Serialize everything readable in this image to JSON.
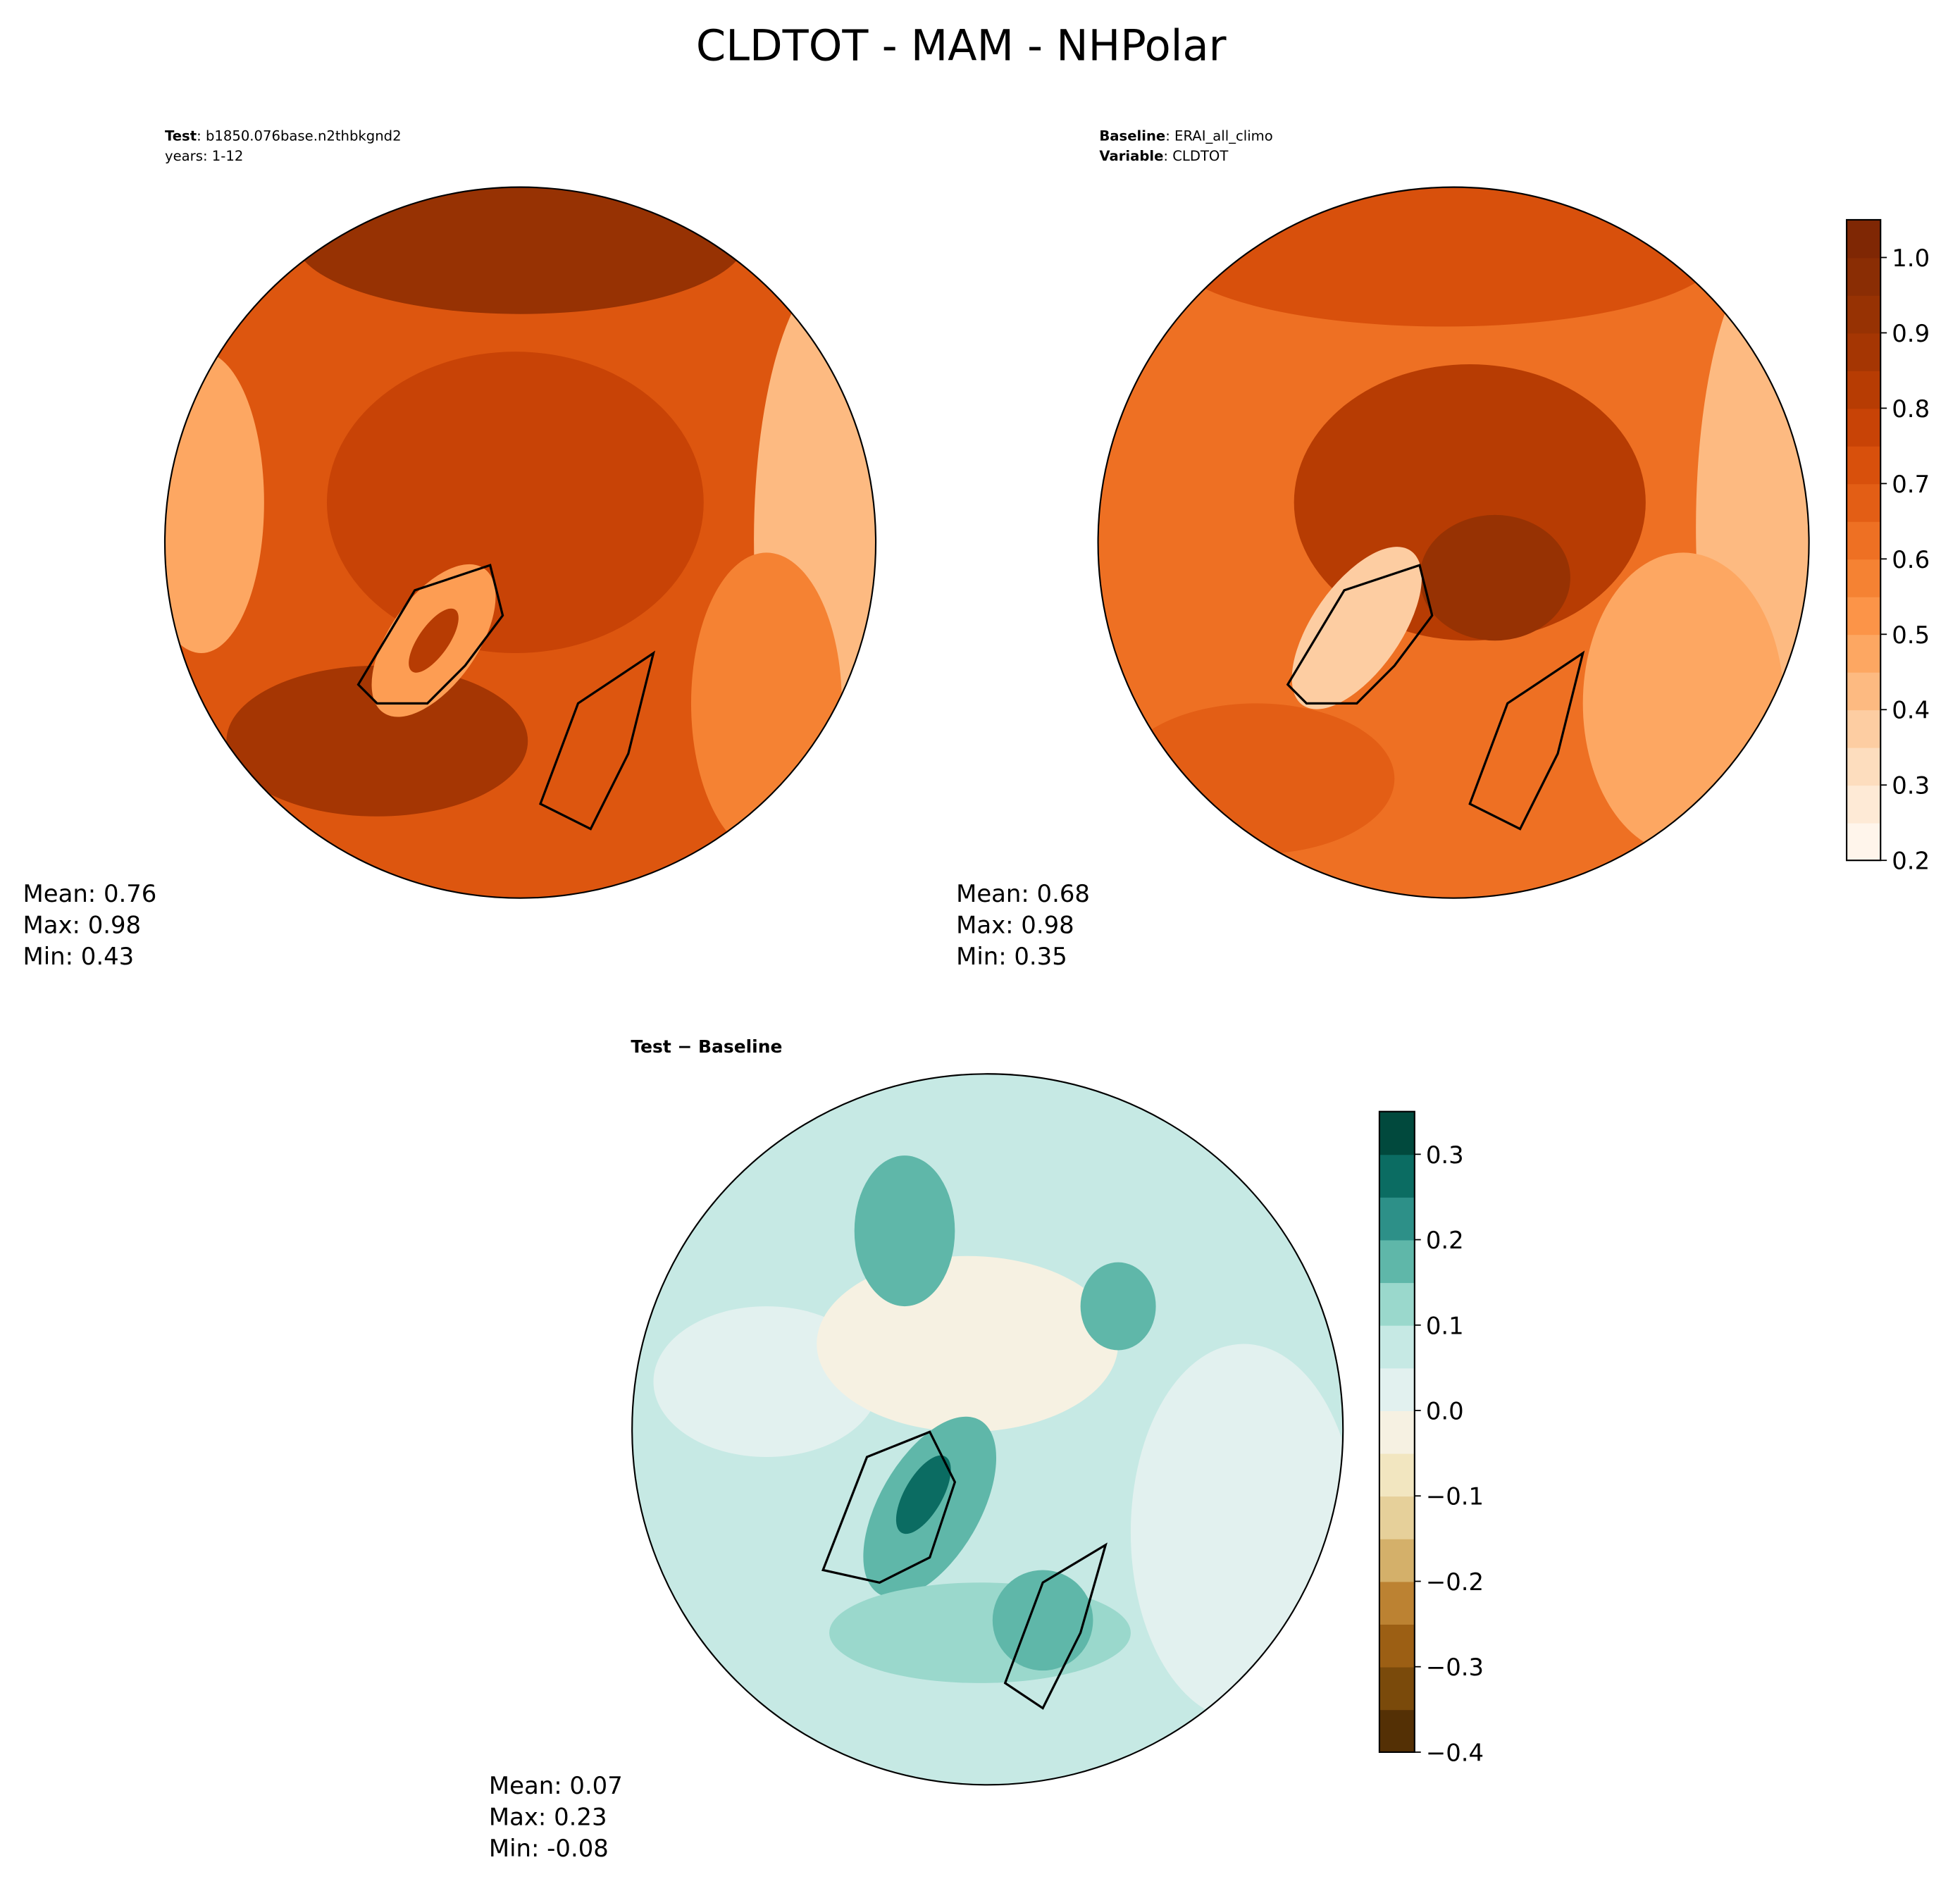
{
  "title": "CLDTOT - MAM - NHPolar",
  "chart_data": [
    {
      "type": "map",
      "subtitle_lines": [
        {
          "bold": "Test",
          "text": ": b1850.076base.n2thbkgnd2"
        },
        {
          "text": "years: 1-12"
        }
      ],
      "stats": [
        "Mean:  0.76",
        "Max:  0.98",
        "Min:  0.43"
      ]
    },
    {
      "type": "map",
      "subtitle_lines": [
        {
          "bold": "Baseline",
          "text": ": ERAI_all_climo"
        },
        {
          "bold": "Variable",
          "text": ": CLDTOT"
        }
      ],
      "stats": [
        "Mean:  0.68",
        "Max:  0.98",
        "Min:  0.35"
      ],
      "colorbar": {
        "lim": [
          0.2,
          1.05
        ],
        "ticks": [
          0.2,
          0.3,
          0.4,
          0.5,
          0.6,
          0.7,
          0.8,
          0.9,
          {
            "value": 1.0,
            "label": "1.0"
          }
        ],
        "colors": [
          "#fff5eb",
          "#feead6",
          "#fdddbe",
          "#fdcda2",
          "#fdba81",
          "#fda762",
          "#fc9448",
          "#f58233",
          "#ee7023",
          "#e35e15",
          "#d8500c",
          "#c84306",
          "#b73c03",
          "#a53603",
          "#973203",
          "#8a2d04",
          "#7f2704"
        ]
      }
    },
    {
      "type": "map",
      "title": "Test − Baseline",
      "stats": [
        "Mean:  0.07",
        "Max:  0.23",
        "Min: -0.08"
      ],
      "colorbar": {
        "lim": [
          -0.4,
          0.35
        ],
        "ticks": [
          {
            "value": -0.4,
            "label": "−0.4"
          },
          {
            "value": -0.3,
            "label": "−0.3"
          },
          {
            "value": -0.2,
            "label": "−0.2"
          },
          {
            "value": -0.1,
            "label": "−0.1"
          },
          {
            "value": 0,
            "label": "0.0"
          },
          0.1,
          0.2,
          0.3
        ],
        "colors": [
          "#543005",
          "#7a4a0b",
          "#9c5f14",
          "#bc8232",
          "#d4b06a",
          "#e6d09a",
          "#f2e6c0",
          "#f6f1e2",
          "#e2f1ef",
          "#c6e9e4",
          "#9ad8cc",
          "#5fb7a9",
          "#2d9088",
          "#0b6c62",
          "#01493d"
        ]
      }
    }
  ]
}
